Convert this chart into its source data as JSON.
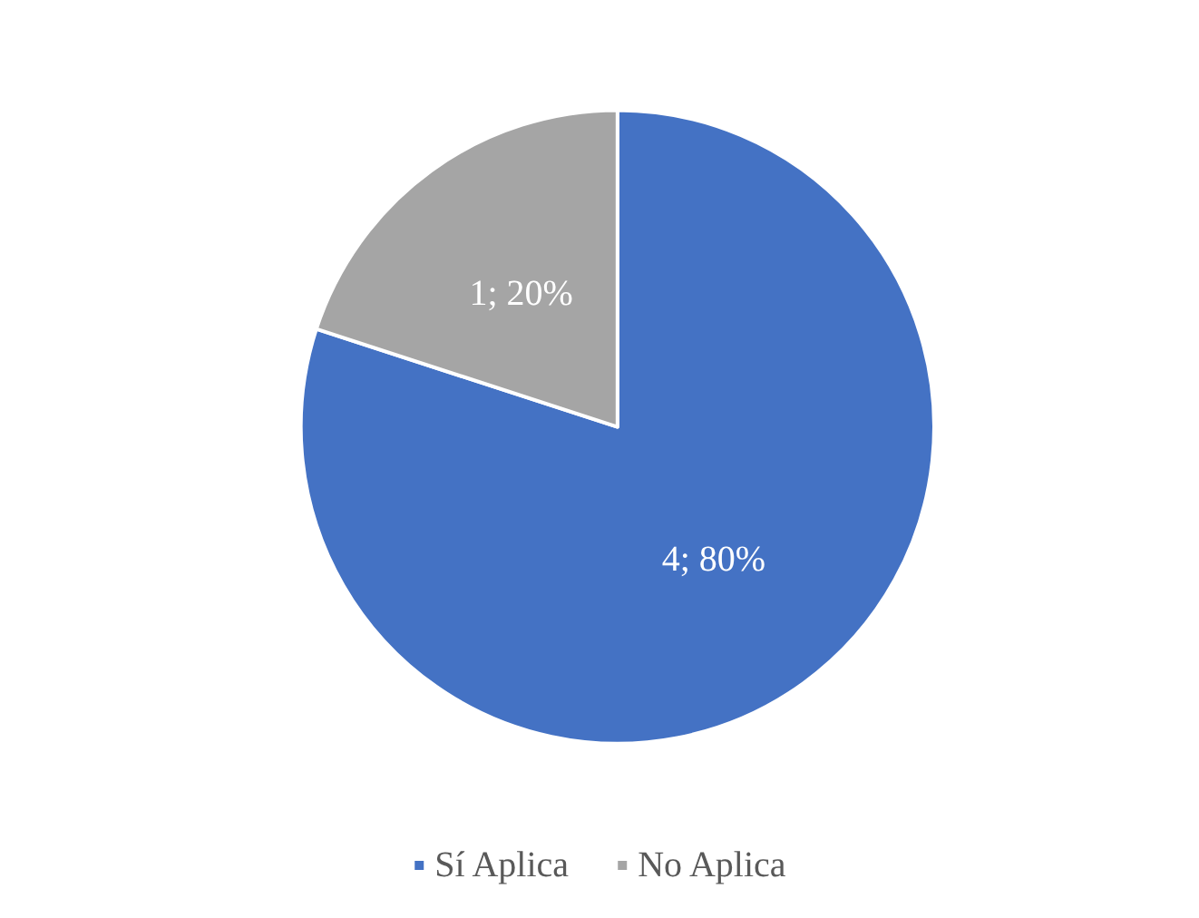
{
  "chart_data": {
    "type": "pie",
    "categories": [
      "Sí Aplica",
      "No Aplica"
    ],
    "values": [
      4,
      1
    ],
    "colors": [
      "#4472c4",
      "#a5a5a5"
    ],
    "value_labels": [
      "4; 80%",
      "1; 20%"
    ],
    "legend": "bottom"
  }
}
